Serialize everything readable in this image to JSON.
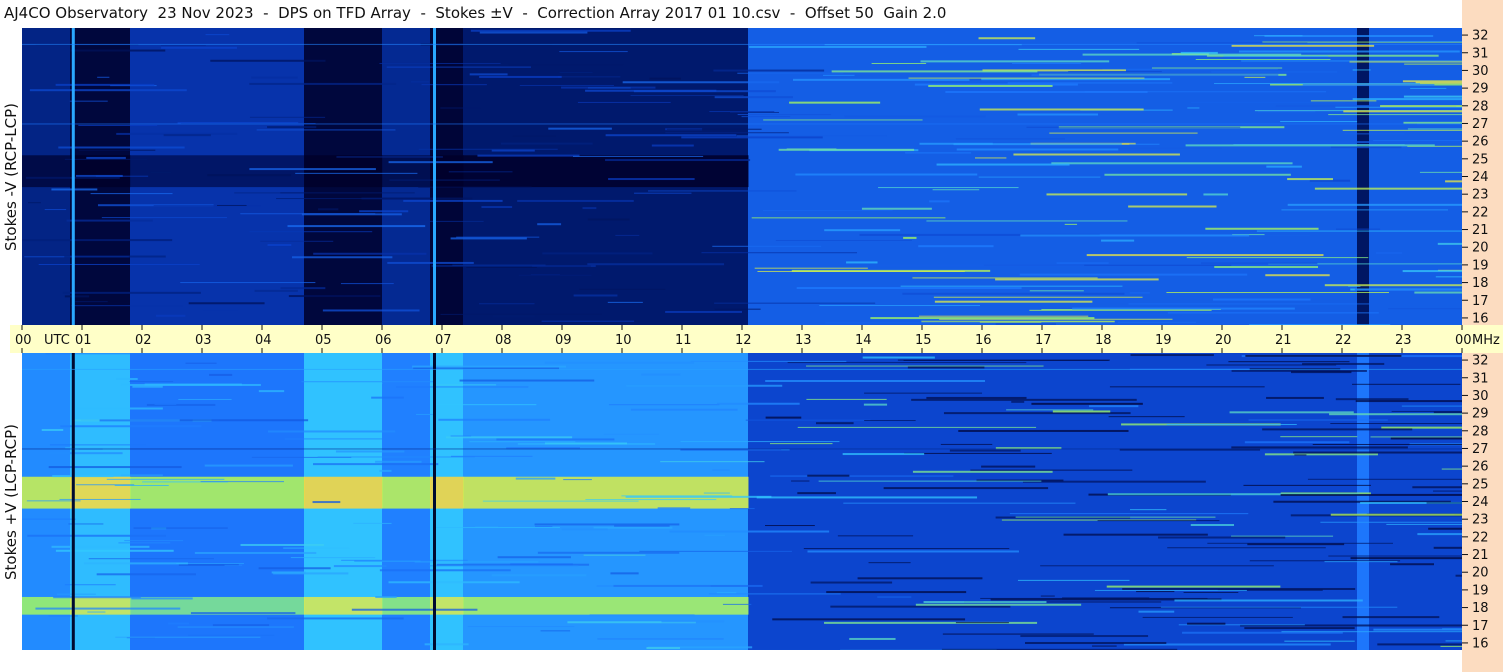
{
  "header": {
    "title": "AJ4CO Observatory  23 Nov 2023  -  DPS on TFD Array  -  Stokes ±V  -  Correction Array 2017 01 10.csv  -  Offset 50  Gain 2.0"
  },
  "chart_data": [
    {
      "type": "heatmap",
      "panel": "top",
      "ylabel": "Stokes -V (RCP-LCP)",
      "x_unit": "UTC",
      "y_unit": "MHz",
      "xlim": [
        0,
        24
      ],
      "ylim": [
        15.6,
        32.4
      ],
      "x_ticks": [
        "00",
        "01",
        "02",
        "03",
        "04",
        "05",
        "06",
        "07",
        "08",
        "09",
        "10",
        "11",
        "12",
        "13",
        "14",
        "15",
        "16",
        "17",
        "18",
        "19",
        "20",
        "21",
        "22",
        "23",
        "00"
      ],
      "y_ticks": [
        16,
        17,
        18,
        19,
        20,
        21,
        22,
        23,
        24,
        25,
        26,
        27,
        28,
        29,
        30,
        31,
        32
      ],
      "segments": [
        {
          "x0": 0.0,
          "x1": 0.8,
          "level": 0.18
        },
        {
          "x0": 0.8,
          "x1": 1.8,
          "level": 0.04
        },
        {
          "x0": 1.8,
          "x1": 4.7,
          "level": 0.24
        },
        {
          "x0": 4.7,
          "x1": 6.0,
          "level": 0.04
        },
        {
          "x0": 6.0,
          "x1": 6.8,
          "level": 0.2
        },
        {
          "x0": 6.8,
          "x1": 7.35,
          "level": 0.03
        },
        {
          "x0": 7.35,
          "x1": 12.1,
          "level": 0.14
        },
        {
          "x0": 12.1,
          "x1": 22.25,
          "level": 0.36
        },
        {
          "x0": 22.25,
          "x1": 22.45,
          "level": 0.12
        },
        {
          "x0": 22.45,
          "x1": 24.0,
          "level": 0.36
        }
      ],
      "dark_band": {
        "x0": 0.0,
        "x1": 12.1,
        "f0": 23.4,
        "f1": 25.2
      },
      "colorscale": [
        "#00002a",
        "#001a6e",
        "#0a3fc8",
        "#1e7aff",
        "#32c8ff",
        "#a8ff5a",
        "#ffe53a",
        "#ff8a3a"
      ]
    },
    {
      "type": "heatmap",
      "panel": "bottom",
      "ylabel": "Stokes +V (LCP-RCP)",
      "x_unit": "UTC",
      "y_unit": "MHz",
      "xlim": [
        0,
        24
      ],
      "ylim": [
        15.6,
        32.4
      ],
      "y_ticks": [
        16,
        17,
        18,
        19,
        20,
        21,
        22,
        23,
        24,
        25,
        26,
        27,
        28,
        29,
        30,
        31,
        32
      ],
      "segments": [
        {
          "x0": 0.0,
          "x1": 0.8,
          "level": 0.46
        },
        {
          "x0": 0.8,
          "x1": 1.8,
          "level": 0.55
        },
        {
          "x0": 1.8,
          "x1": 4.7,
          "level": 0.42
        },
        {
          "x0": 4.7,
          "x1": 6.0,
          "level": 0.56
        },
        {
          "x0": 6.0,
          "x1": 6.8,
          "level": 0.44
        },
        {
          "x0": 6.8,
          "x1": 7.35,
          "level": 0.56
        },
        {
          "x0": 7.35,
          "x1": 12.1,
          "level": 0.48
        },
        {
          "x0": 12.1,
          "x1": 22.25,
          "level": 0.3
        },
        {
          "x0": 22.25,
          "x1": 22.45,
          "level": 0.42
        },
        {
          "x0": 22.45,
          "x1": 24.0,
          "level": 0.3
        }
      ],
      "bright_band": {
        "x0": 0.0,
        "x1": 12.1,
        "f0": 23.6,
        "f1": 25.4
      },
      "colorscale": [
        "#00002a",
        "#001a6e",
        "#0a3fc8",
        "#1e7aff",
        "#32c8ff",
        "#a8ff5a",
        "#ffe53a",
        "#ff8a3a"
      ]
    }
  ],
  "time_axis": {
    "utc_label": "UTC",
    "mhz_label": "MHz"
  }
}
